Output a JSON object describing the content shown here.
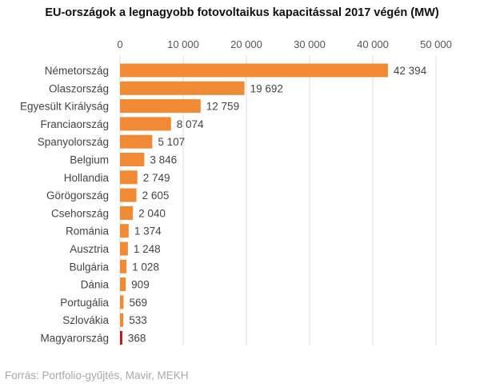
{
  "chart_data": {
    "type": "bar",
    "orientation": "horizontal",
    "title": "EU-országok a legnagyobb fotovoltaikus kapacitással 2017 végén (MW)",
    "categories": [
      "Németország",
      "Olaszország",
      "Egyesült Királyság",
      "Franciaország",
      "Spanyolország",
      "Belgium",
      "Hollandia",
      "Görögország",
      "Csehország",
      "Románia",
      "Ausztria",
      "Bulgária",
      "Dánia",
      "Portugália",
      "Szlovákia",
      "Magyarország"
    ],
    "values": [
      42394,
      19692,
      12759,
      8074,
      5107,
      3846,
      2749,
      2605,
      2040,
      1374,
      1248,
      1028,
      909,
      569,
      533,
      368
    ],
    "value_labels": [
      "42 394",
      "19 692",
      "12 759",
      "8 074",
      "5 107",
      "3 846",
      "2 749",
      "2 605",
      "2 040",
      "1 374",
      "1 248",
      "1 028",
      "909",
      "569",
      "533",
      "368"
    ],
    "xlim": [
      0,
      50000
    ],
    "xticks": [
      0,
      10000,
      20000,
      30000,
      40000,
      50000
    ],
    "xtick_labels": [
      "0",
      "10 000",
      "20 000",
      "30 000",
      "40 000",
      "50 000"
    ],
    "x_axis_position": "top",
    "grid": true,
    "bar_color": "#f08a35",
    "highlight_category": "Magyarország",
    "highlight_color": "#b31c1c",
    "grid_color": "#dcdcdc"
  },
  "source": "Forrás: Portfolio-gyűjtés, Mavir, MEKH"
}
